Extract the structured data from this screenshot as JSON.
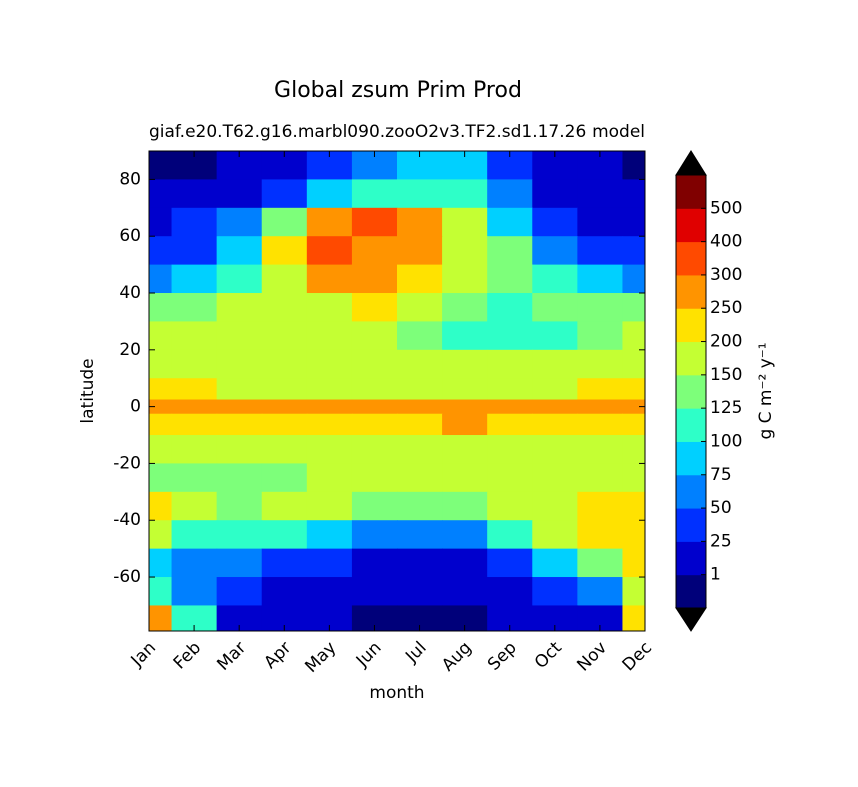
{
  "chart_data": {
    "type": "contour",
    "title": "Global zsum Prim Prod",
    "subtitle_left": "giaf.e20.T62.g16.marbl090.zooO2v3.TF2.sd1.17.26",
    "subtitle_right": "model",
    "xlabel": "month",
    "ylabel": "latitude",
    "categories": [
      "Jan",
      "Feb",
      "Mar",
      "Apr",
      "May",
      "Jun",
      "Jul",
      "Aug",
      "Sep",
      "Oct",
      "Nov",
      "Dec"
    ],
    "xlim": [
      0,
      11
    ],
    "ylim": [
      -79,
      90
    ],
    "yticks": [
      -60,
      -40,
      -20,
      0,
      20,
      40,
      60,
      80
    ],
    "lat": [
      85,
      75,
      65,
      55,
      45,
      35,
      25,
      15,
      5,
      0,
      -5,
      -15,
      -25,
      -35,
      -45,
      -55,
      -65,
      -75
    ],
    "z": [
      [
        0.5,
        0.5,
        5,
        15,
        30,
        60,
        90,
        80,
        40,
        10,
        1,
        0.5
      ],
      [
        5,
        10,
        20,
        40,
        80,
        110,
        120,
        100,
        60,
        20,
        10,
        5
      ],
      [
        15,
        25,
        50,
        140,
        280,
        300,
        260,
        160,
        90,
        40,
        20,
        15
      ],
      [
        30,
        45,
        80,
        200,
        320,
        290,
        270,
        190,
        130,
        70,
        40,
        30
      ],
      [
        60,
        80,
        120,
        180,
        260,
        270,
        240,
        180,
        140,
        110,
        80,
        65
      ],
      [
        140,
        140,
        150,
        170,
        190,
        200,
        175,
        140,
        120,
        130,
        140,
        140
      ],
      [
        160,
        160,
        160,
        165,
        165,
        160,
        140,
        120,
        110,
        120,
        140,
        155
      ],
      [
        180,
        170,
        160,
        160,
        160,
        160,
        160,
        155,
        150,
        160,
        170,
        180
      ],
      [
        210,
        200,
        190,
        180,
        170,
        180,
        190,
        190,
        190,
        190,
        200,
        210
      ],
      [
        270,
        260,
        260,
        260,
        260,
        270,
        280,
        280,
        280,
        270,
        260,
        260
      ],
      [
        210,
        210,
        200,
        200,
        200,
        220,
        240,
        250,
        240,
        220,
        210,
        210
      ],
      [
        160,
        160,
        160,
        160,
        160,
        170,
        180,
        180,
        170,
        160,
        160,
        160
      ],
      [
        140,
        130,
        130,
        140,
        150,
        160,
        160,
        160,
        160,
        150,
        150,
        150
      ],
      [
        210,
        160,
        140,
        150,
        150,
        140,
        140,
        140,
        150,
        180,
        200,
        220
      ],
      [
        160,
        120,
        110,
        100,
        90,
        70,
        60,
        70,
        110,
        160,
        210,
        240
      ],
      [
        90,
        70,
        50,
        30,
        25,
        15,
        15,
        20,
        40,
        80,
        140,
        200
      ],
      [
        120,
        60,
        30,
        15,
        5,
        3,
        3,
        5,
        10,
        30,
        60,
        150
      ],
      [
        250,
        100,
        10,
        5,
        1,
        0.5,
        0.5,
        0.5,
        1,
        2,
        20,
        200
      ]
    ],
    "levels": [
      1,
      25,
      50,
      75,
      100,
      125,
      150,
      200,
      250,
      300,
      400,
      500
    ],
    "colors": [
      "#00007a",
      "#0000cd",
      "#0030ff",
      "#0080ff",
      "#00d0ff",
      "#2effc8",
      "#7dff7a",
      "#c4ff33",
      "#ffe200",
      "#ff9400",
      "#ff4a00",
      "#e00000",
      "#800000"
    ],
    "under_color": "#000000",
    "over_color": "#000000",
    "colorbar_label": "g C m⁻² y⁻¹"
  }
}
